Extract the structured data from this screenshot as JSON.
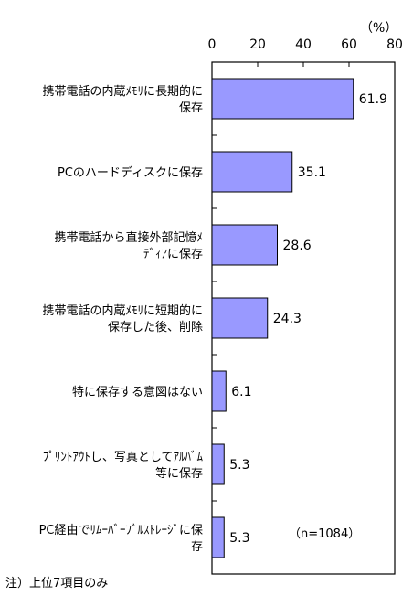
{
  "chart_data": {
    "type": "bar",
    "orientation": "horizontal",
    "unit": "（%）",
    "xlim": [
      0,
      80
    ],
    "ticks": [
      "0",
      "20",
      "40",
      "60",
      "80"
    ],
    "categories": [
      [
        "携帯電話の内蔵ﾒﾓﾘに長期的に",
        "保存"
      ],
      [
        "PCのハードディスクに保存"
      ],
      [
        "携帯電話から直接外部記憶ﾒ",
        "ﾃﾞｨｱに保存"
      ],
      [
        "携帯電話の内蔵ﾒﾓﾘに短期的に",
        "保存した後、削除"
      ],
      [
        "特に保存する意図はない"
      ],
      [
        "ﾌﾟﾘﾝﾄｱｳﾄし、写真としてｱﾙﾊﾞﾑ",
        "等に保存"
      ],
      [
        "PC経由でﾘﾑｰﾊﾞｰﾌﾞﾙｽﾄﾚｰｼﾞに保",
        "存"
      ]
    ],
    "values": [
      61.9,
      35.1,
      28.6,
      24.3,
      6.1,
      5.3,
      5.3
    ],
    "value_labels": [
      "61.9",
      "35.1",
      "28.6",
      "24.3",
      "6.1",
      "5.3",
      "5.3"
    ],
    "bar_color": "#9999FF",
    "sample_size": "（n=1084）",
    "note": "注）上位7項目のみ"
  }
}
